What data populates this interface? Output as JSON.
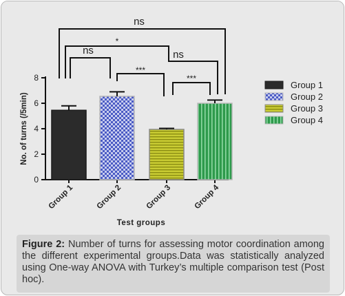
{
  "chart_data": {
    "type": "bar",
    "categories": [
      "Group 1",
      "Group 2",
      "Group 3",
      "Group 4"
    ],
    "values": [
      5.45,
      6.55,
      3.95,
      6.0
    ],
    "errors": [
      0.35,
      0.35,
      0.08,
      0.25
    ],
    "xlabel": "Test groups",
    "ylabel": "No. of turns (/5min)",
    "ylim": [
      0,
      8
    ],
    "yticks": [
      "0",
      "2",
      "4",
      "6",
      "8"
    ],
    "legend": {
      "placement": "right",
      "entries": [
        "Group 1",
        "Group 2",
        "Group 3",
        "Group 4"
      ]
    },
    "colors": [
      "#2b2b2b",
      "#4a5bc4",
      "#c9cc33",
      "#2e9a4c"
    ],
    "significance": [
      {
        "pair": [
          "Group 1",
          "Group 4"
        ],
        "label": "ns"
      },
      {
        "pair": [
          "Group 1",
          "Group 3"
        ],
        "label": "*"
      },
      {
        "pair": [
          "Group 1",
          "Group 2"
        ],
        "label": "ns"
      },
      {
        "pair": [
          "Group 2",
          "Group 4"
        ],
        "label": "ns"
      },
      {
        "pair": [
          "Group 2",
          "Group 3"
        ],
        "label": "***"
      },
      {
        "pair": [
          "Group 3",
          "Group 4"
        ],
        "label": "***"
      }
    ]
  },
  "caption": {
    "label": "Figure 2:",
    "text": " Number of turns for assessing motor coordination among the different experimental groups.Data was statistically analyzed using One-way ANOVA with Turkey’s multiple comparison test (Post hoc)."
  }
}
